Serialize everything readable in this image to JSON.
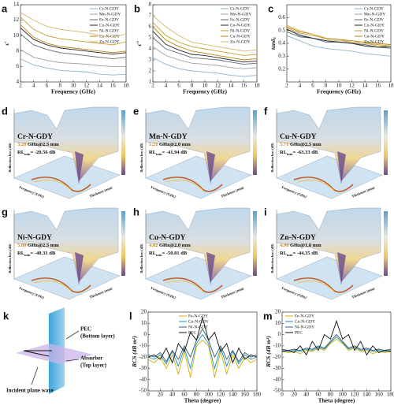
{
  "chart_data": [
    {
      "type": "line",
      "panel": "a",
      "xlabel": "Frequency (GHz)",
      "ylabel": "ε′",
      "x": [
        2,
        4,
        6,
        8,
        10,
        12,
        14,
        16,
        18
      ],
      "xlim": [
        2,
        18
      ],
      "xticks": [
        2,
        4,
        6,
        8,
        10,
        12,
        14,
        16,
        18
      ],
      "ylim": [
        4,
        14
      ],
      "yticks": [
        4,
        6,
        8,
        10,
        12,
        14
      ],
      "legend": "upper right",
      "series": [
        {
          "name": "Cr-N-GDY",
          "color": "#8fb3c9",
          "values": [
            7.0,
            6.2,
            5.8,
            5.5,
            5.4,
            5.3,
            5.0,
            4.9,
            5.0
          ]
        },
        {
          "name": "Mn-N-GDY",
          "color": "#9aa0a6",
          "values": [
            8.2,
            7.2,
            6.8,
            6.5,
            6.4,
            6.3,
            6.1,
            6.0,
            6.0
          ]
        },
        {
          "name": "Fe-N-GDY",
          "color": "#5a6b7a",
          "values": [
            10.2,
            8.8,
            8.2,
            7.8,
            7.6,
            7.4,
            7.2,
            7.0,
            7.2
          ]
        },
        {
          "name": "Co-N-GDY",
          "color": "#222222",
          "values": [
            11.0,
            9.5,
            8.8,
            8.4,
            8.2,
            8.0,
            7.8,
            7.6,
            7.8
          ]
        },
        {
          "name": "Ni-N-GDY",
          "color": "#c8a030",
          "values": [
            12.4,
            10.8,
            10.0,
            9.6,
            9.4,
            9.2,
            9.0,
            8.8,
            9.2
          ]
        },
        {
          "name": "Cu-N-GDY",
          "color": "#b8860b",
          "values": [
            11.4,
            9.8,
            9.0,
            8.6,
            8.4,
            8.2,
            8.0,
            7.8,
            8.0
          ]
        },
        {
          "name": "Zn-N-GDY",
          "color": "#d2b86a",
          "values": [
            13.0,
            12.0,
            11.2,
            10.8,
            10.6,
            10.4,
            10.0,
            9.8,
            10.2
          ]
        }
      ]
    },
    {
      "type": "line",
      "panel": "b",
      "xlabel": "Frequency (GHz)",
      "ylabel": "ε″",
      "x": [
        2,
        4,
        6,
        8,
        10,
        12,
        14,
        16,
        18
      ],
      "xlim": [
        2,
        18
      ],
      "xticks": [
        2,
        4,
        6,
        8,
        10,
        12,
        14,
        16,
        18
      ],
      "ylim": [
        1,
        8
      ],
      "yticks": [
        1,
        2,
        3,
        4,
        5,
        6,
        7,
        8
      ],
      "legend": "upper right",
      "series": [
        {
          "name": "Cr-N-GDY",
          "color": "#8fb3c9",
          "values": [
            3.2,
            2.6,
            2.2,
            2.0,
            1.9,
            1.8,
            1.6,
            1.5,
            1.6
          ]
        },
        {
          "name": "Mn-N-GDY",
          "color": "#9aa0a6",
          "values": [
            4.2,
            3.4,
            3.0,
            2.7,
            2.6,
            2.5,
            2.3,
            2.2,
            2.3
          ]
        },
        {
          "name": "Fe-N-GDY",
          "color": "#5a6b7a",
          "values": [
            5.0,
            4.0,
            3.6,
            3.2,
            3.1,
            3.0,
            2.8,
            2.6,
            2.7
          ]
        },
        {
          "name": "Co-N-GDY",
          "color": "#222222",
          "values": [
            5.6,
            4.4,
            3.9,
            3.5,
            3.4,
            3.2,
            3.0,
            2.8,
            2.9
          ]
        },
        {
          "name": "Ni-N-GDY",
          "color": "#c8a030",
          "values": [
            6.4,
            5.2,
            4.6,
            4.2,
            4.0,
            3.8,
            3.6,
            3.4,
            3.5
          ]
        },
        {
          "name": "Cu-N-GDY",
          "color": "#b8860b",
          "values": [
            6.0,
            4.8,
            4.2,
            3.8,
            3.6,
            3.4,
            3.2,
            3.0,
            3.1
          ]
        },
        {
          "name": "Zn-N-GDY",
          "color": "#d2b86a",
          "values": [
            7.0,
            6.0,
            5.2,
            4.6,
            4.4,
            4.2,
            4.0,
            3.8,
            3.9
          ]
        }
      ]
    },
    {
      "type": "line",
      "panel": "c",
      "xlabel": "Frequency (GHz)",
      "ylabel": "tanδ",
      "ylabel_sub": "ε",
      "x": [
        2,
        4,
        6,
        8,
        10,
        12,
        14,
        16,
        18
      ],
      "xlim": [
        2,
        18
      ],
      "xticks": [
        2,
        4,
        6,
        8,
        10,
        12,
        14,
        16,
        18
      ],
      "ylim": [
        0.1,
        0.7
      ],
      "yticks": [
        0.2,
        0.3,
        0.4,
        0.5,
        0.6
      ],
      "legend": "upper right",
      "series": [
        {
          "name": "Cr-N-GDY",
          "color": "#8fb3c9",
          "values": [
            0.46,
            0.42,
            0.38,
            0.36,
            0.35,
            0.34,
            0.32,
            0.31,
            0.3
          ]
        },
        {
          "name": "Mn-N-GDY",
          "color": "#9aa0a6",
          "values": [
            0.51,
            0.47,
            0.44,
            0.42,
            0.41,
            0.4,
            0.38,
            0.37,
            0.36
          ]
        },
        {
          "name": "Fe-N-GDY",
          "color": "#5a6b7a",
          "values": [
            0.49,
            0.45,
            0.44,
            0.41,
            0.41,
            0.4,
            0.39,
            0.37,
            0.38
          ]
        },
        {
          "name": "Co-N-GDY",
          "color": "#222222",
          "values": [
            0.51,
            0.46,
            0.44,
            0.42,
            0.41,
            0.4,
            0.38,
            0.37,
            0.37
          ]
        },
        {
          "name": "Ni-N-GDY",
          "color": "#c8a030",
          "values": [
            0.52,
            0.48,
            0.46,
            0.44,
            0.43,
            0.41,
            0.4,
            0.39,
            0.38
          ]
        },
        {
          "name": "Cu-N-GDY",
          "color": "#b8860b",
          "values": [
            0.53,
            0.49,
            0.47,
            0.44,
            0.43,
            0.42,
            0.41,
            0.4,
            0.39
          ]
        },
        {
          "name": "Zn-N-GDY",
          "color": "#d2b86a",
          "values": [
            0.54,
            0.5,
            0.47,
            0.43,
            0.42,
            0.41,
            0.4,
            0.38,
            0.38
          ]
        }
      ]
    },
    {
      "type": "line",
      "panel": "l",
      "xlabel": "Theta (degree)",
      "ylabel": "RCS (dB m²)",
      "x": [
        0,
        10,
        20,
        30,
        40,
        50,
        60,
        70,
        80,
        90,
        100,
        110,
        120,
        130,
        140,
        150,
        160,
        170,
        180
      ],
      "xlim": [
        0,
        180
      ],
      "xticks": [
        0,
        20,
        40,
        60,
        80,
        100,
        120,
        140,
        160,
        180
      ],
      "ylim": [
        -50,
        20
      ],
      "yticks": [
        -50,
        -40,
        -30,
        -20,
        -10,
        0,
        10,
        20
      ],
      "legend": "upper center",
      "series": [
        {
          "name": "Fe-N-GDY",
          "color": "#d4b000",
          "values": [
            -22,
            -25,
            -20,
            -30,
            -18,
            -35,
            -15,
            -38,
            -10,
            -5,
            -10,
            -38,
            -15,
            -35,
            -18,
            -30,
            -20,
            -25,
            -22
          ]
        },
        {
          "name": "Cu-N-GDY",
          "color": "#1a90c0",
          "values": [
            -20,
            -22,
            -18,
            -26,
            -15,
            -28,
            -12,
            -30,
            -8,
            0,
            -8,
            -30,
            -12,
            -28,
            -15,
            -26,
            -18,
            -22,
            -20
          ]
        },
        {
          "name": "Ni-N-GDY",
          "color": "#3a5a6a",
          "values": [
            -18,
            -20,
            -16,
            -24,
            -14,
            -22,
            -10,
            -20,
            -5,
            5,
            -5,
            -20,
            -10,
            -22,
            -14,
            -24,
            -16,
            -20,
            -18
          ]
        },
        {
          "name": "PEC",
          "color": "#111111",
          "values": [
            -20,
            -18,
            -22,
            -12,
            -25,
            -8,
            -15,
            2,
            -5,
            15,
            -5,
            2,
            -15,
            -8,
            -25,
            -12,
            -22,
            -18,
            -20
          ]
        }
      ]
    },
    {
      "type": "line",
      "panel": "m",
      "xlabel": "Theta (degree)",
      "ylabel": "RCS (dB m²)",
      "x": [
        0,
        10,
        20,
        30,
        40,
        50,
        60,
        70,
        80,
        90,
        100,
        110,
        120,
        130,
        140,
        150,
        160,
        170,
        180
      ],
      "xlim": [
        0,
        180
      ],
      "xticks": [
        0,
        20,
        40,
        60,
        80,
        100,
        120,
        140,
        160,
        180
      ],
      "ylim": [
        -50,
        20
      ],
      "yticks": [
        -50,
        -40,
        -30,
        -20,
        -10,
        0,
        10,
        20
      ],
      "legend": "upper left",
      "series": [
        {
          "name": "Fe-N-GDY",
          "color": "#d4b000",
          "values": [
            -15,
            -16,
            -15,
            -17,
            -14,
            -15,
            -12,
            -14,
            -8,
            -4,
            -8,
            -14,
            -12,
            -15,
            -14,
            -17,
            -15,
            -16,
            -15
          ]
        },
        {
          "name": "Cu-N-GDY",
          "color": "#1a90c0",
          "values": [
            -14,
            -15,
            -14,
            -15,
            -13,
            -14,
            -11,
            -13,
            -7,
            -2,
            -7,
            -13,
            -11,
            -14,
            -13,
            -15,
            -14,
            -15,
            -14
          ]
        },
        {
          "name": "Ni-N-GDY",
          "color": "#3a5a6a",
          "values": [
            -13,
            -14,
            -13,
            -14,
            -12,
            -13,
            -10,
            -12,
            -6,
            0,
            -6,
            -12,
            -10,
            -13,
            -12,
            -14,
            -13,
            -14,
            -13
          ]
        },
        {
          "name": "PEC",
          "color": "#111111",
          "values": [
            -15,
            -14,
            -16,
            -10,
            -18,
            -6,
            -14,
            0,
            -4,
            12,
            -4,
            0,
            -14,
            -6,
            -18,
            -10,
            -16,
            -14,
            -15
          ]
        }
      ]
    }
  ],
  "surface_panels": {
    "axis_labels": {
      "z": "Reflection loss (dB)",
      "x": "Frequency (GHz)",
      "y": "Thickness (mm)"
    },
    "items": [
      {
        "letter": "d",
        "name": "Cr-N-GDY",
        "peak_frequency": "3.28",
        "condition": " GHz@2.5 mm",
        "rl": "RL",
        "rl_sub": "min",
        "rl_value": "= -20.56 dB"
      },
      {
        "letter": "e",
        "name": "Mn-N-GDY",
        "peak_frequency": "5.21",
        "condition": " GHz@2.0 mm",
        "rl": "RL",
        "rl_sub": "min",
        "rl_value": "= -41.94 dB"
      },
      {
        "letter": "f",
        "name": "Cu-N-GDY",
        "peak_frequency": "5.71",
        "condition": " GHz@2.5 mm",
        "rl": "RL",
        "rl_sub": "min",
        "rl_value": "= -63.33 dB"
      },
      {
        "letter": "g",
        "name": "Ni-N-GDY",
        "peak_frequency": "5.80",
        "condition": " GHz@2.5 mm",
        "rl": "RL",
        "rl_sub": "min",
        "rl_value": "= -40.31 dB"
      },
      {
        "letter": "h",
        "name": "Cu-N-GDY",
        "peak_frequency": "4.82",
        "condition": " GHz@2.0 mm",
        "rl": "RL",
        "rl_sub": "min",
        "rl_value": "= -50.81 dB"
      },
      {
        "letter": "i",
        "name": "Zn-N-GDY",
        "peak_frequency": "4.90",
        "condition": " GHz@1.8 mm",
        "rl": "RL",
        "rl_sub": "min",
        "rl_value": "= -44.35 dB"
      }
    ]
  },
  "diagram": {
    "letter": "k",
    "pec": "PEC",
    "pec_note": "(Bottom layer)",
    "absorber": "Absorber",
    "absorber_note": "(Top layer)",
    "incident": "Incident plane wave"
  }
}
